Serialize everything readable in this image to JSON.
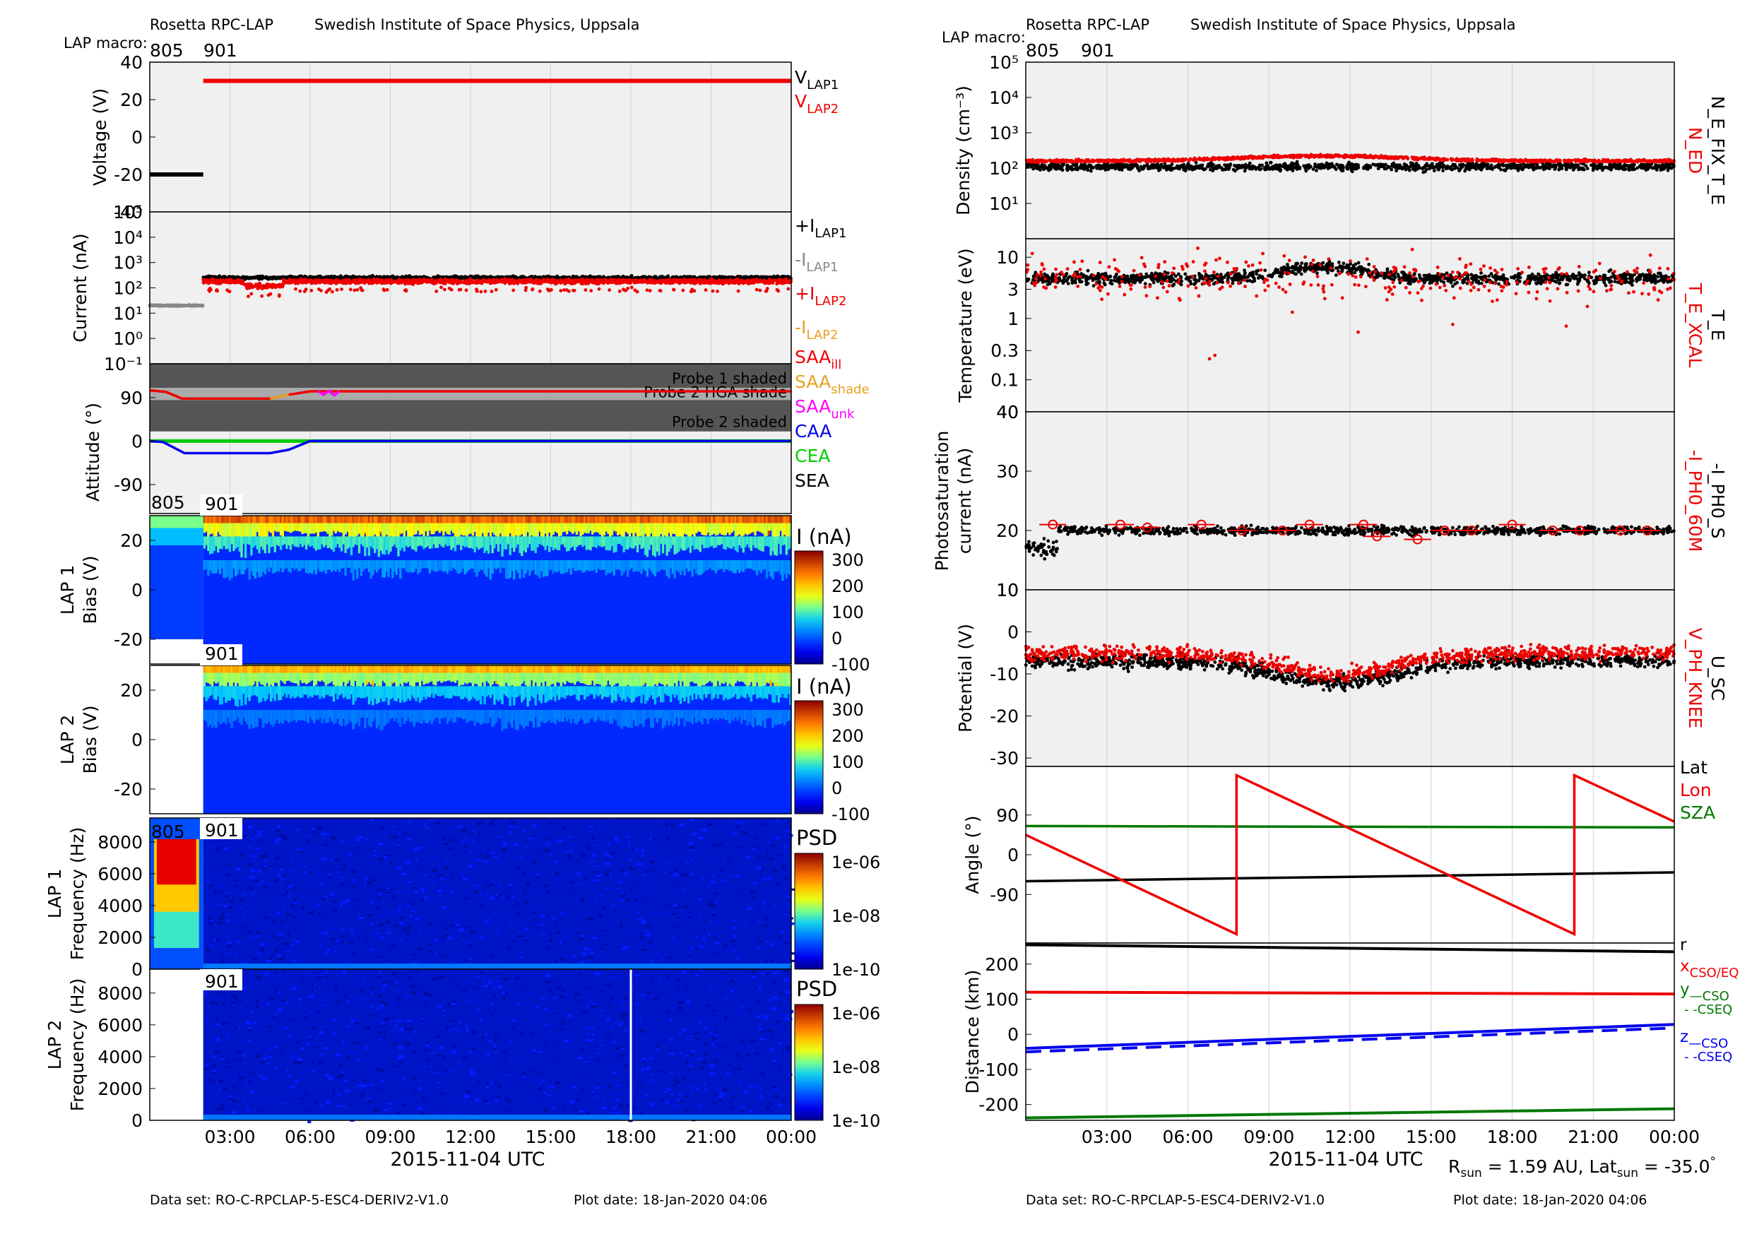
{
  "header": {
    "left": {
      "instrument": "Rosetta RPC-LAP",
      "institute": "Swedish Institute of Space Physics, Uppsala",
      "macro_label": "LAP macro:",
      "macros": [
        "805",
        "901"
      ]
    },
    "right": {
      "instrument": "Rosetta RPC-LAP",
      "institute": "Swedish Institute of Space Physics, Uppsala",
      "macro_label": "LAP macro:",
      "macros": [
        "805",
        "901"
      ]
    }
  },
  "footer": {
    "left": {
      "dataset": "Data set: RO-C-RPCLAP-5-ESC4-DERIV2-V1.0",
      "plotdate": "Plot date: 18-Jan-2020 04:06"
    },
    "right": {
      "dataset": "Data set: RO-C-RPCLAP-5-ESC4-DERIV2-V1.0",
      "plotdate": "Plot date: 18-Jan-2020 04:06"
    }
  },
  "xaxis": {
    "label": "2015-11-04 UTC",
    "ticks": [
      "03:00",
      "06:00",
      "09:00",
      "12:00",
      "15:00",
      "18:00",
      "21:00",
      "00:00"
    ],
    "range_hours": [
      0,
      24
    ]
  },
  "rsun": {
    "a": "R",
    "a_sub": "sun",
    "b": " = 1.59 AU, Lat",
    "b_sub": "sun",
    "c": " = -35.0",
    "sup": "°"
  },
  "colors": {
    "black": "#000000",
    "red": "#ee0000",
    "gray": "#888888",
    "orange": "#e8a020",
    "magenta": "#ff00ff",
    "blue": "#0000ee",
    "green": "#00cc00",
    "darkgreen": "#007700",
    "panel_bg": "#f0f0f0"
  },
  "chart_data": [
    {
      "id": "voltage",
      "type": "line",
      "ylabel": "Voltage (V)",
      "ylim": [
        -40,
        40
      ],
      "yticks": [
        "40",
        "20",
        "0",
        "-20",
        "-40"
      ],
      "series": [
        {
          "name": "V_LAP1",
          "x": [
            0,
            2.0
          ],
          "y": [
            -20,
            -20
          ]
        },
        {
          "name": "V_LAP2",
          "x": [
            2.0,
            24
          ],
          "y": [
            30,
            30
          ]
        }
      ],
      "legend": [
        {
          "main": "V",
          "sub": "LAP1",
          "color": "black"
        },
        {
          "main": "V",
          "sub": "LAP2",
          "color": "red"
        }
      ]
    },
    {
      "id": "current",
      "type": "scatter",
      "ylabel": "Current (nA)",
      "yscale": "log",
      "ylim": [
        0.1,
        100000
      ],
      "yticks": [
        "10⁵",
        "10⁴",
        "10³",
        "10²",
        "10¹",
        "10⁰",
        "10⁻¹"
      ],
      "series": [
        {
          "name": "+I_LAP1",
          "level": 250
        },
        {
          "name": "-I_LAP1",
          "x": [
            0,
            2.0
          ],
          "level": 20
        },
        {
          "name": "+I_LAP2",
          "level": 180
        }
      ],
      "legend": [
        {
          "main": "+I",
          "sub": "LAP1",
          "color": "black"
        },
        {
          "main": "-I",
          "sub": "LAP1",
          "color": "gray"
        },
        {
          "main": "+I",
          "sub": "LAP2",
          "color": "red"
        },
        {
          "main": "-I",
          "sub": "LAP2",
          "color": "orange"
        }
      ]
    },
    {
      "id": "attitude",
      "type": "line",
      "ylabel": "Attitude (°)",
      "yticks": [
        "90",
        "0",
        "-90"
      ],
      "ylim": [
        -150,
        160
      ],
      "bands": [
        {
          "label": "Probe 1 shaded",
          "y": [
            110,
            160
          ],
          "color": "#555555"
        },
        {
          "label": "Probe 2 HGA shade",
          "y": [
            85,
            110
          ],
          "color": "#aaaaaa"
        },
        {
          "label": "Probe 2 shaded",
          "y": [
            20,
            85
          ],
          "color": "#555555"
        }
      ],
      "series": [
        {
          "name": "SAA_ill",
          "x": [
            0,
            0.6,
            1.2,
            4.5,
            5.2,
            6.0,
            24
          ],
          "y": [
            105,
            102,
            88,
            88,
            96,
            103,
            103
          ]
        },
        {
          "name": "CAA",
          "x": [
            0,
            0.5,
            1.3,
            4.5,
            5.2,
            6.0,
            24
          ],
          "y": [
            0,
            -2,
            -25,
            -25,
            -18,
            0,
            0
          ]
        },
        {
          "name": "CEA",
          "x": [
            0,
            24
          ],
          "y": [
            0,
            0
          ]
        }
      ],
      "legend": [
        {
          "main": "SAA",
          "sub": "ill",
          "color": "red"
        },
        {
          "main": "SAA",
          "sub": "shade",
          "color": "orange"
        },
        {
          "main": "SAA",
          "sub": "unk",
          "color": "magenta"
        },
        {
          "main": "CAA",
          "sub": "",
          "color": "blue"
        },
        {
          "main": "CEA",
          "sub": "",
          "color": "green"
        },
        {
          "main": "SEA",
          "sub": "",
          "color": "black"
        }
      ]
    },
    {
      "id": "lap1_bias",
      "type": "heatmap",
      "ylabel": "LAP 1",
      "ylabel2": "Bias (V)",
      "ylim": [
        -30,
        30
      ],
      "yticks": [
        "20",
        "0",
        "-20"
      ],
      "colorbar": {
        "label": "I (nA)",
        "ticks": [
          "300",
          "200",
          "100",
          "0",
          "-100"
        ]
      },
      "macros": [
        "805",
        "901"
      ]
    },
    {
      "id": "lap2_bias",
      "type": "heatmap",
      "ylabel": "LAP 2",
      "ylabel2": "Bias (V)",
      "ylim": [
        -30,
        30
      ],
      "yticks": [
        "20",
        "0",
        "-20"
      ],
      "colorbar": {
        "label": "I (nA)",
        "ticks": [
          "300",
          "200",
          "100",
          "0",
          "-100"
        ]
      },
      "macros": [
        "901"
      ]
    },
    {
      "id": "lap1_freq",
      "type": "heatmap",
      "ylabel": "LAP 1",
      "ylabel2": "Frequency (Hz)",
      "ylim": [
        0,
        9500
      ],
      "yticks": [
        "8000",
        "6000",
        "4000",
        "2000",
        "0"
      ],
      "colorbar": {
        "label": "PSD",
        "ticks": [
          "1e-06",
          "1e-08",
          "1e-10"
        ]
      },
      "macros": [
        "805",
        "901"
      ]
    },
    {
      "id": "lap2_freq",
      "type": "heatmap",
      "ylabel": "LAP 2",
      "ylabel2": "Frequency (Hz)",
      "ylim": [
        0,
        9500
      ],
      "yticks": [
        "8000",
        "6000",
        "4000",
        "2000",
        "0"
      ],
      "colorbar": {
        "label": "PSD",
        "ticks": [
          "1e-06",
          "1e-08",
          "1e-10"
        ]
      },
      "macros": [
        "901"
      ]
    },
    {
      "id": "density",
      "type": "scatter",
      "ylabel": "Density (cm⁻³)",
      "yscale": "log",
      "ylim": [
        1,
        100000
      ],
      "yticks": [
        "10⁵",
        "10⁴",
        "10³",
        "10²",
        "10¹"
      ],
      "series": [
        {
          "name": "N_ED",
          "level": 180
        },
        {
          "name": "N_E_FIX_T_E",
          "level": 110
        }
      ],
      "side_labels": [
        {
          "text": "N_ED",
          "color": "red"
        },
        {
          "text": "N_E_FIX_T_E",
          "color": "black"
        }
      ]
    },
    {
      "id": "temperature",
      "type": "scatter",
      "ylabel": "Temperature (eV)",
      "yscale": "log",
      "ylim": [
        0.03,
        20
      ],
      "yticks": [
        "10",
        "3",
        "1",
        "0.3",
        "0.1"
      ],
      "series": [
        {
          "name": "T_E_XCAL",
          "level": 4.5
        },
        {
          "name": "T_E",
          "level": 4.5
        }
      ],
      "side_labels": [
        {
          "text": "T_E_XCAL",
          "color": "red"
        },
        {
          "text": "T_E",
          "color": "black"
        }
      ]
    },
    {
      "id": "photosat",
      "type": "scatter",
      "ylabel": "Photosaturation",
      "ylabel2": "current (nA)",
      "ylim": [
        10,
        40
      ],
      "yticks": [
        "40",
        "30",
        "20",
        "10"
      ],
      "series": [
        {
          "name": "-I_PH0_S",
          "level": 20
        },
        {
          "name": "-I_PH0_60M",
          "x": [
            1.0,
            3.5,
            4.5,
            6.5,
            8.0,
            9.5,
            10.5,
            12.5,
            13.0,
            14.5,
            15.5,
            16.5,
            18.0,
            19.5,
            20.5,
            22.0,
            23.0
          ],
          "y": [
            21,
            21,
            20.5,
            21,
            20,
            20,
            21,
            21,
            19,
            18.5,
            20,
            20,
            21,
            20,
            20,
            20,
            20
          ]
        }
      ],
      "side_labels": [
        {
          "text": "-I_PH0_60M",
          "color": "red"
        },
        {
          "text": "-I_PH0_S",
          "color": "black"
        }
      ]
    },
    {
      "id": "potential",
      "type": "scatter",
      "ylabel": "Potential (V)",
      "ylim": [
        -32,
        10
      ],
      "yticks": [
        "0",
        "-10",
        "-20",
        "-30"
      ],
      "series": [
        {
          "name": "V_PH_KNEE",
          "level": -8
        },
        {
          "name": "U_SC",
          "level": -10
        }
      ],
      "side_labels": [
        {
          "text": "V_PH_KNEE",
          "color": "red"
        },
        {
          "text": "U_SC",
          "color": "black"
        }
      ]
    },
    {
      "id": "angle",
      "type": "line",
      "ylabel": "Angle (°)",
      "ylim": [
        -200,
        200
      ],
      "yticks": [
        "90",
        "0",
        "-90"
      ],
      "series": [
        {
          "name": "Lat",
          "x": [
            0,
            24
          ],
          "y": [
            -60,
            -40
          ]
        },
        {
          "name": "Lon",
          "x": [
            0,
            7.8,
            7.8,
            20.3,
            20.3,
            24
          ],
          "y": [
            45,
            -180,
            180,
            -180,
            180,
            75
          ]
        },
        {
          "name": "SZA",
          "x": [
            0,
            24
          ],
          "y": [
            65,
            62
          ]
        }
      ],
      "legend": [
        {
          "main": "Lat",
          "sub": "",
          "color": "black"
        },
        {
          "main": "Lon",
          "sub": "",
          "color": "red"
        },
        {
          "main": "SZA",
          "sub": "",
          "color": "darkgreen"
        }
      ]
    },
    {
      "id": "distance",
      "type": "line",
      "ylabel": "Distance (km)",
      "ylim": [
        -245,
        260
      ],
      "yticks": [
        "200",
        "100",
        "0",
        "-100",
        "-200"
      ],
      "series": [
        {
          "name": "r",
          "x": [
            0,
            24
          ],
          "y": [
            255,
            235
          ]
        },
        {
          "name": "x_CSO/EQ",
          "x": [
            0,
            24
          ],
          "y": [
            120,
            115
          ]
        },
        {
          "name": "y_CSO",
          "x": [
            0,
            24
          ],
          "y": [
            -238,
            -212
          ]
        },
        {
          "name": "z_CSO",
          "x": [
            0,
            24
          ],
          "y": [
            -40,
            28
          ]
        },
        {
          "name": "z_CSEQ",
          "x": [
            0,
            24
          ],
          "y": [
            -50,
            18
          ]
        }
      ],
      "legend": [
        {
          "main": "r",
          "sub": "",
          "color": "black"
        },
        {
          "main": "x",
          "sub": "CSO/EQ",
          "color": "red"
        },
        {
          "main": "y",
          "sub": "—CSO",
          "color": "darkgreen"
        },
        {
          "main": "",
          "sub": "- -CSEQ",
          "color": "darkgreen"
        },
        {
          "main": "z",
          "sub": "—CSO",
          "color": "blue"
        },
        {
          "main": "",
          "sub": "- -CSEQ",
          "color": "blue"
        }
      ]
    }
  ]
}
